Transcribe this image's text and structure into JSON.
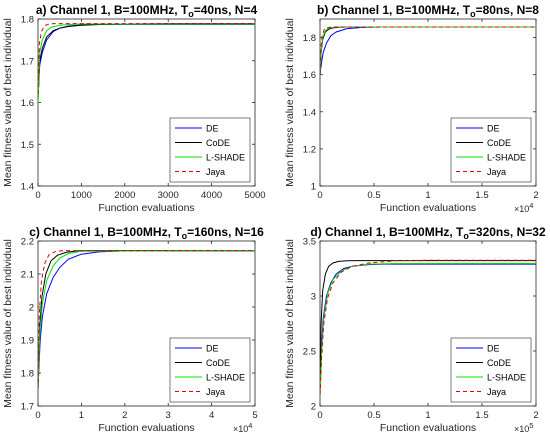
{
  "figure": {
    "ylabel_left": "Mean fitness value of best individual",
    "ylabel_right": "Mean fitness value of best individual"
  },
  "legend_entries": [
    "DE",
    "CoDE",
    "L-SHADE",
    "Jaya"
  ],
  "colors": {
    "DE": "#0000ff",
    "CoDE": "#000000",
    "L-SHADE": "#00e000",
    "Jaya": "#e00000"
  },
  "chart_data": [
    {
      "type": "line",
      "title": "a) Channel 1, B=100MHz, T",
      "title_sub": "o",
      "title_rest": "=40ns, N=4",
      "xlabel": "Function evaluations",
      "ylabel": "Mean fitness value of best individual",
      "xlim": [
        0,
        5000
      ],
      "ylim": [
        1.4,
        1.8
      ],
      "xticks": [
        0,
        1000,
        2000,
        3000,
        4000,
        5000
      ],
      "xtick_labels": [
        "0",
        "1000",
        "2000",
        "3000",
        "4000",
        "5000"
      ],
      "yticks": [
        1.4,
        1.5,
        1.6,
        1.7,
        1.8
      ],
      "ytick_labels": [
        "1.4",
        "1.5",
        "1.6",
        "1.7",
        "1.8"
      ],
      "x_exponent": "",
      "legend": "bottom-right",
      "series": [
        {
          "name": "DE",
          "x": [
            0,
            40,
            100,
            200,
            350,
            500,
            700,
            1000,
            1500,
            2000,
            3000,
            5000
          ],
          "y": [
            1.62,
            1.69,
            1.72,
            1.75,
            1.77,
            1.778,
            1.783,
            1.786,
            1.787,
            1.787,
            1.787,
            1.787
          ]
        },
        {
          "name": "CoDE",
          "x": [
            0,
            40,
            100,
            200,
            350,
            500,
            700,
            1000,
            1500,
            2000,
            3000,
            5000
          ],
          "y": [
            1.6,
            1.7,
            1.73,
            1.757,
            1.772,
            1.778,
            1.782,
            1.785,
            1.787,
            1.788,
            1.789,
            1.789
          ]
        },
        {
          "name": "L-SHADE",
          "x": [
            0,
            40,
            100,
            200,
            300,
            500,
            800,
            1000,
            2000,
            5000
          ],
          "y": [
            1.6,
            1.72,
            1.75,
            1.772,
            1.78,
            1.785,
            1.787,
            1.788,
            1.788,
            1.788
          ]
        },
        {
          "name": "Jaya",
          "x": [
            0,
            30,
            80,
            150,
            250,
            350,
            500,
            1000,
            5000
          ],
          "y": [
            1.62,
            1.74,
            1.77,
            1.784,
            1.788,
            1.789,
            1.789,
            1.789,
            1.789
          ]
        }
      ]
    },
    {
      "type": "line",
      "title": "b) Channel 1, B=100MHz, T",
      "title_sub": "o",
      "title_rest": "=80ns, N=8",
      "xlabel": "Function evaluations",
      "ylabel": "Mean fitness value of best individual",
      "xlim": [
        0,
        20000
      ],
      "ylim": [
        1.0,
        1.9
      ],
      "xticks": [
        0,
        5000,
        10000,
        15000,
        20000
      ],
      "xtick_labels": [
        "0",
        "0.5",
        "1",
        "1.5",
        "2"
      ],
      "yticks": [
        1.0,
        1.2,
        1.4,
        1.6,
        1.8
      ],
      "ytick_labels": [
        "1",
        "1.2",
        "1.4",
        "1.6",
        "1.8"
      ],
      "x_exponent": "4",
      "legend": "bottom-right",
      "series": [
        {
          "name": "DE",
          "x": [
            0,
            150,
            300,
            600,
            1000,
            1500,
            2500,
            4000,
            6000,
            20000
          ],
          "y": [
            1.6,
            1.67,
            1.72,
            1.77,
            1.81,
            1.83,
            1.848,
            1.855,
            1.857,
            1.857
          ]
        },
        {
          "name": "CoDE",
          "x": [
            0,
            100,
            250,
            500,
            800,
            1200,
            2000,
            3000,
            20000
          ],
          "y": [
            1.6,
            1.72,
            1.79,
            1.83,
            1.845,
            1.852,
            1.856,
            1.857,
            1.857
          ]
        },
        {
          "name": "L-SHADE",
          "x": [
            0,
            100,
            250,
            500,
            800,
            1200,
            2000,
            20000
          ],
          "y": [
            1.6,
            1.73,
            1.8,
            1.838,
            1.85,
            1.855,
            1.857,
            1.857
          ]
        },
        {
          "name": "Jaya",
          "x": [
            0,
            80,
            200,
            400,
            700,
            1000,
            1500,
            20000
          ],
          "y": [
            1.6,
            1.74,
            1.81,
            1.845,
            1.853,
            1.856,
            1.857,
            1.857
          ]
        }
      ]
    },
    {
      "type": "line",
      "title": "c) Channel 1, B=100MHz, T",
      "title_sub": "o",
      "title_rest": "=160ns, N=16",
      "xlabel": "Function evaluations",
      "ylabel": "Mean fitness value of best individual",
      "xlim": [
        0,
        50000
      ],
      "ylim": [
        1.7,
        2.2
      ],
      "xticks": [
        0,
        10000,
        20000,
        30000,
        40000,
        50000
      ],
      "xtick_labels": [
        "0",
        "1",
        "2",
        "3",
        "4",
        "5"
      ],
      "yticks": [
        1.7,
        1.8,
        1.9,
        2.0,
        2.1,
        2.2
      ],
      "ytick_labels": [
        "1.7",
        "1.8",
        "1.9",
        "2",
        "2.1",
        "2.2"
      ],
      "x_exponent": "4",
      "legend": "bottom-right",
      "series": [
        {
          "name": "DE",
          "x": [
            0,
            500,
            1000,
            2000,
            3500,
            5000,
            7000,
            10000,
            14000,
            20000,
            50000
          ],
          "y": [
            1.75,
            1.9,
            1.97,
            2.04,
            2.09,
            2.12,
            2.145,
            2.16,
            2.167,
            2.17,
            2.17
          ]
        },
        {
          "name": "CoDE",
          "x": [
            0,
            400,
            900,
            1800,
            3000,
            4500,
            6500,
            9000,
            13000,
            50000
          ],
          "y": [
            1.75,
            1.94,
            2.03,
            2.1,
            2.14,
            2.157,
            2.166,
            2.17,
            2.171,
            2.171
          ]
        },
        {
          "name": "L-SHADE",
          "x": [
            0,
            400,
            1000,
            2000,
            3500,
            5000,
            7000,
            10000,
            50000
          ],
          "y": [
            1.75,
            1.92,
            2.01,
            2.08,
            2.125,
            2.148,
            2.162,
            2.169,
            2.171
          ]
        },
        {
          "name": "Jaya",
          "x": [
            0,
            300,
            800,
            1500,
            2500,
            4000,
            6000,
            50000
          ],
          "y": [
            1.75,
            1.98,
            2.08,
            2.13,
            2.158,
            2.168,
            2.171,
            2.171
          ]
        }
      ]
    },
    {
      "type": "line",
      "title": "d) Channel 1, B=100MHz, T",
      "title_sub": "o",
      "title_rest": "=320ns, N=32",
      "xlabel": "Function evaluations",
      "ylabel": "Mean fitness value of best individual",
      "xlim": [
        0,
        200000
      ],
      "ylim": [
        2.0,
        3.5
      ],
      "xticks": [
        0,
        50000,
        100000,
        150000,
        200000
      ],
      "xtick_labels": [
        "0",
        "0.5",
        "1",
        "1.5",
        "2"
      ],
      "yticks": [
        2.0,
        2.5,
        3.0,
        3.5
      ],
      "ytick_labels": [
        "2",
        "2.5",
        "3",
        "3.5"
      ],
      "x_exponent": "5",
      "legend": "bottom-right",
      "series": [
        {
          "name": "DE",
          "x": [
            0,
            1500,
            3000,
            6000,
            10000,
            15000,
            22000,
            30000,
            45000,
            60000,
            200000
          ],
          "y": [
            2.1,
            2.55,
            2.8,
            3.0,
            3.12,
            3.2,
            3.25,
            3.27,
            3.285,
            3.29,
            3.29
          ]
        },
        {
          "name": "CoDE",
          "x": [
            0,
            1000,
            2500,
            5000,
            8000,
            12000,
            17000,
            25000,
            35000,
            200000
          ],
          "y": [
            2.1,
            2.75,
            3.05,
            3.2,
            3.27,
            3.3,
            3.315,
            3.32,
            3.322,
            3.322
          ]
        },
        {
          "name": "L-SHADE",
          "x": [
            0,
            1500,
            3500,
            7000,
            12000,
            20000,
            30000,
            45000,
            70000,
            200000
          ],
          "y": [
            2.1,
            2.5,
            2.8,
            3.02,
            3.15,
            3.23,
            3.27,
            3.29,
            3.295,
            3.297
          ]
        },
        {
          "name": "Jaya",
          "x": [
            0,
            1500,
            3500,
            7000,
            12000,
            20000,
            30000,
            45000,
            70000,
            100000,
            200000
          ],
          "y": [
            2.1,
            2.45,
            2.75,
            2.98,
            3.12,
            3.22,
            3.27,
            3.3,
            3.32,
            3.325,
            3.325
          ]
        }
      ]
    }
  ]
}
